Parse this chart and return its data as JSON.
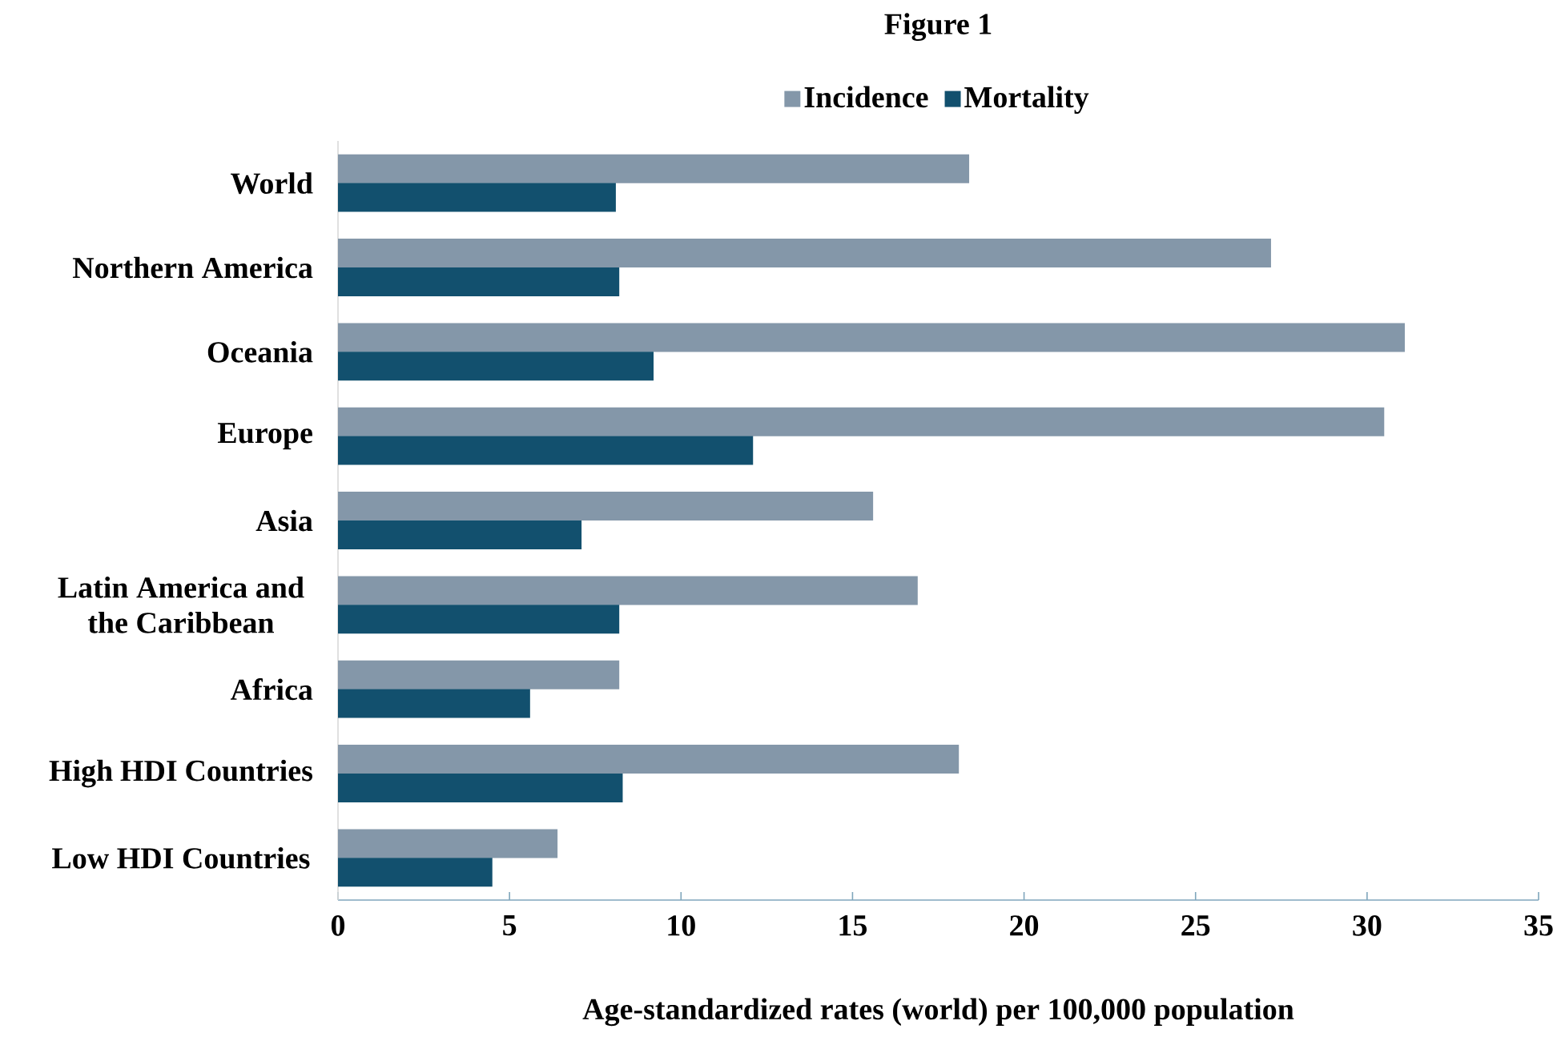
{
  "chart_data": {
    "type": "bar",
    "orientation": "horizontal",
    "title": "Figure 1",
    "xlabel": "Age-standardized rates (world) per 100,000 population",
    "categories": [
      "World",
      "Northern America",
      "Oceania",
      "Europe",
      "Asia",
      "Latin America and the Caribbean",
      "Africa",
      "High HDI Countries",
      "Low HDI Countries"
    ],
    "series": [
      {
        "name": "Incidence",
        "color": "#8497a9",
        "values": [
          18.4,
          27.2,
          31.1,
          30.5,
          15.6,
          16.9,
          8.2,
          18.1,
          6.4
        ]
      },
      {
        "name": "Mortality",
        "color": "#12506e",
        "values": [
          8.1,
          8.2,
          9.2,
          12.1,
          7.1,
          8.2,
          5.6,
          8.3,
          4.5
        ]
      }
    ],
    "xlim": [
      0,
      35
    ],
    "xticks": [
      0,
      5,
      10,
      15,
      20,
      25,
      30,
      35
    ],
    "legend": "top"
  }
}
